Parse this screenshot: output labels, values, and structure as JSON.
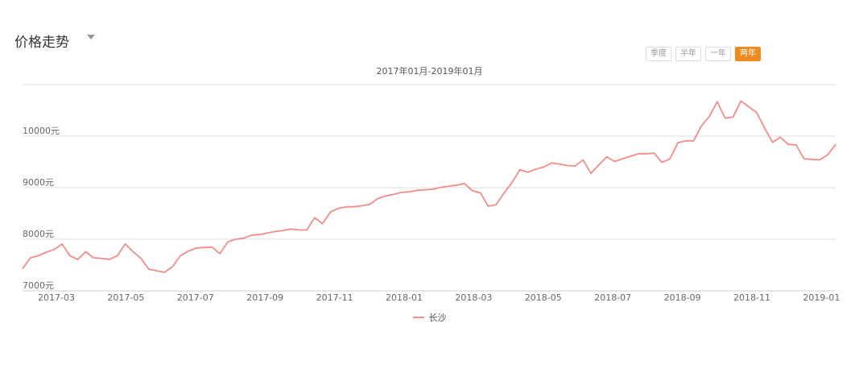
{
  "header": {
    "title": "价格走势",
    "period_buttons": [
      {
        "label": "季度",
        "active": false
      },
      {
        "label": "半年",
        "active": false
      },
      {
        "label": "一年",
        "active": false
      },
      {
        "label": "两年",
        "active": true
      }
    ],
    "date_range": "2017年01月-2019年01月"
  },
  "colors": {
    "line": "#f08c8a",
    "accent": "#f08a1c",
    "grid": "#dddddd"
  },
  "chart_data": {
    "type": "line",
    "title": "",
    "xlabel": "",
    "ylabel": "",
    "ylim": [
      7000,
      11000
    ],
    "y_ticks": [
      {
        "value": 7000,
        "label": "7000元"
      },
      {
        "value": 8000,
        "label": "8000元"
      },
      {
        "value": 9000,
        "label": "9000元"
      },
      {
        "value": 10000,
        "label": "10000元"
      }
    ],
    "x_ticks": [
      "2017-03",
      "2017-05",
      "2017-07",
      "2017-09",
      "2017-11",
      "2018-01",
      "2018-03",
      "2018-05",
      "2018-07",
      "2018-09",
      "2018-11",
      "2019-01"
    ],
    "legend_position": "bottom",
    "grid": true,
    "series": [
      {
        "name": "长沙",
        "values": [
          7430,
          7640,
          7680,
          7750,
          7800,
          7910,
          7680,
          7610,
          7760,
          7640,
          7630,
          7610,
          7680,
          7910,
          7760,
          7630,
          7420,
          7390,
          7360,
          7470,
          7680,
          7770,
          7830,
          7840,
          7850,
          7720,
          7950,
          8000,
          8020,
          8080,
          8090,
          8120,
          8150,
          8170,
          8200,
          8180,
          8180,
          8420,
          8300,
          8530,
          8600,
          8630,
          8630,
          8650,
          8680,
          8790,
          8840,
          8870,
          8910,
          8920,
          8950,
          8960,
          8970,
          9010,
          9030,
          9050,
          9080,
          8940,
          8900,
          8640,
          8670,
          8900,
          9100,
          9350,
          9300,
          9360,
          9400,
          9480,
          9460,
          9430,
          9420,
          9540,
          9280,
          9440,
          9600,
          9510,
          9560,
          9610,
          9660,
          9660,
          9670,
          9490,
          9560,
          9870,
          9910,
          9910,
          10200,
          10380,
          10670,
          10350,
          10370,
          10680,
          10570,
          10460,
          10160,
          9880,
          9980,
          9840,
          9830,
          9560,
          9550,
          9540,
          9640,
          9840
        ]
      }
    ]
  }
}
